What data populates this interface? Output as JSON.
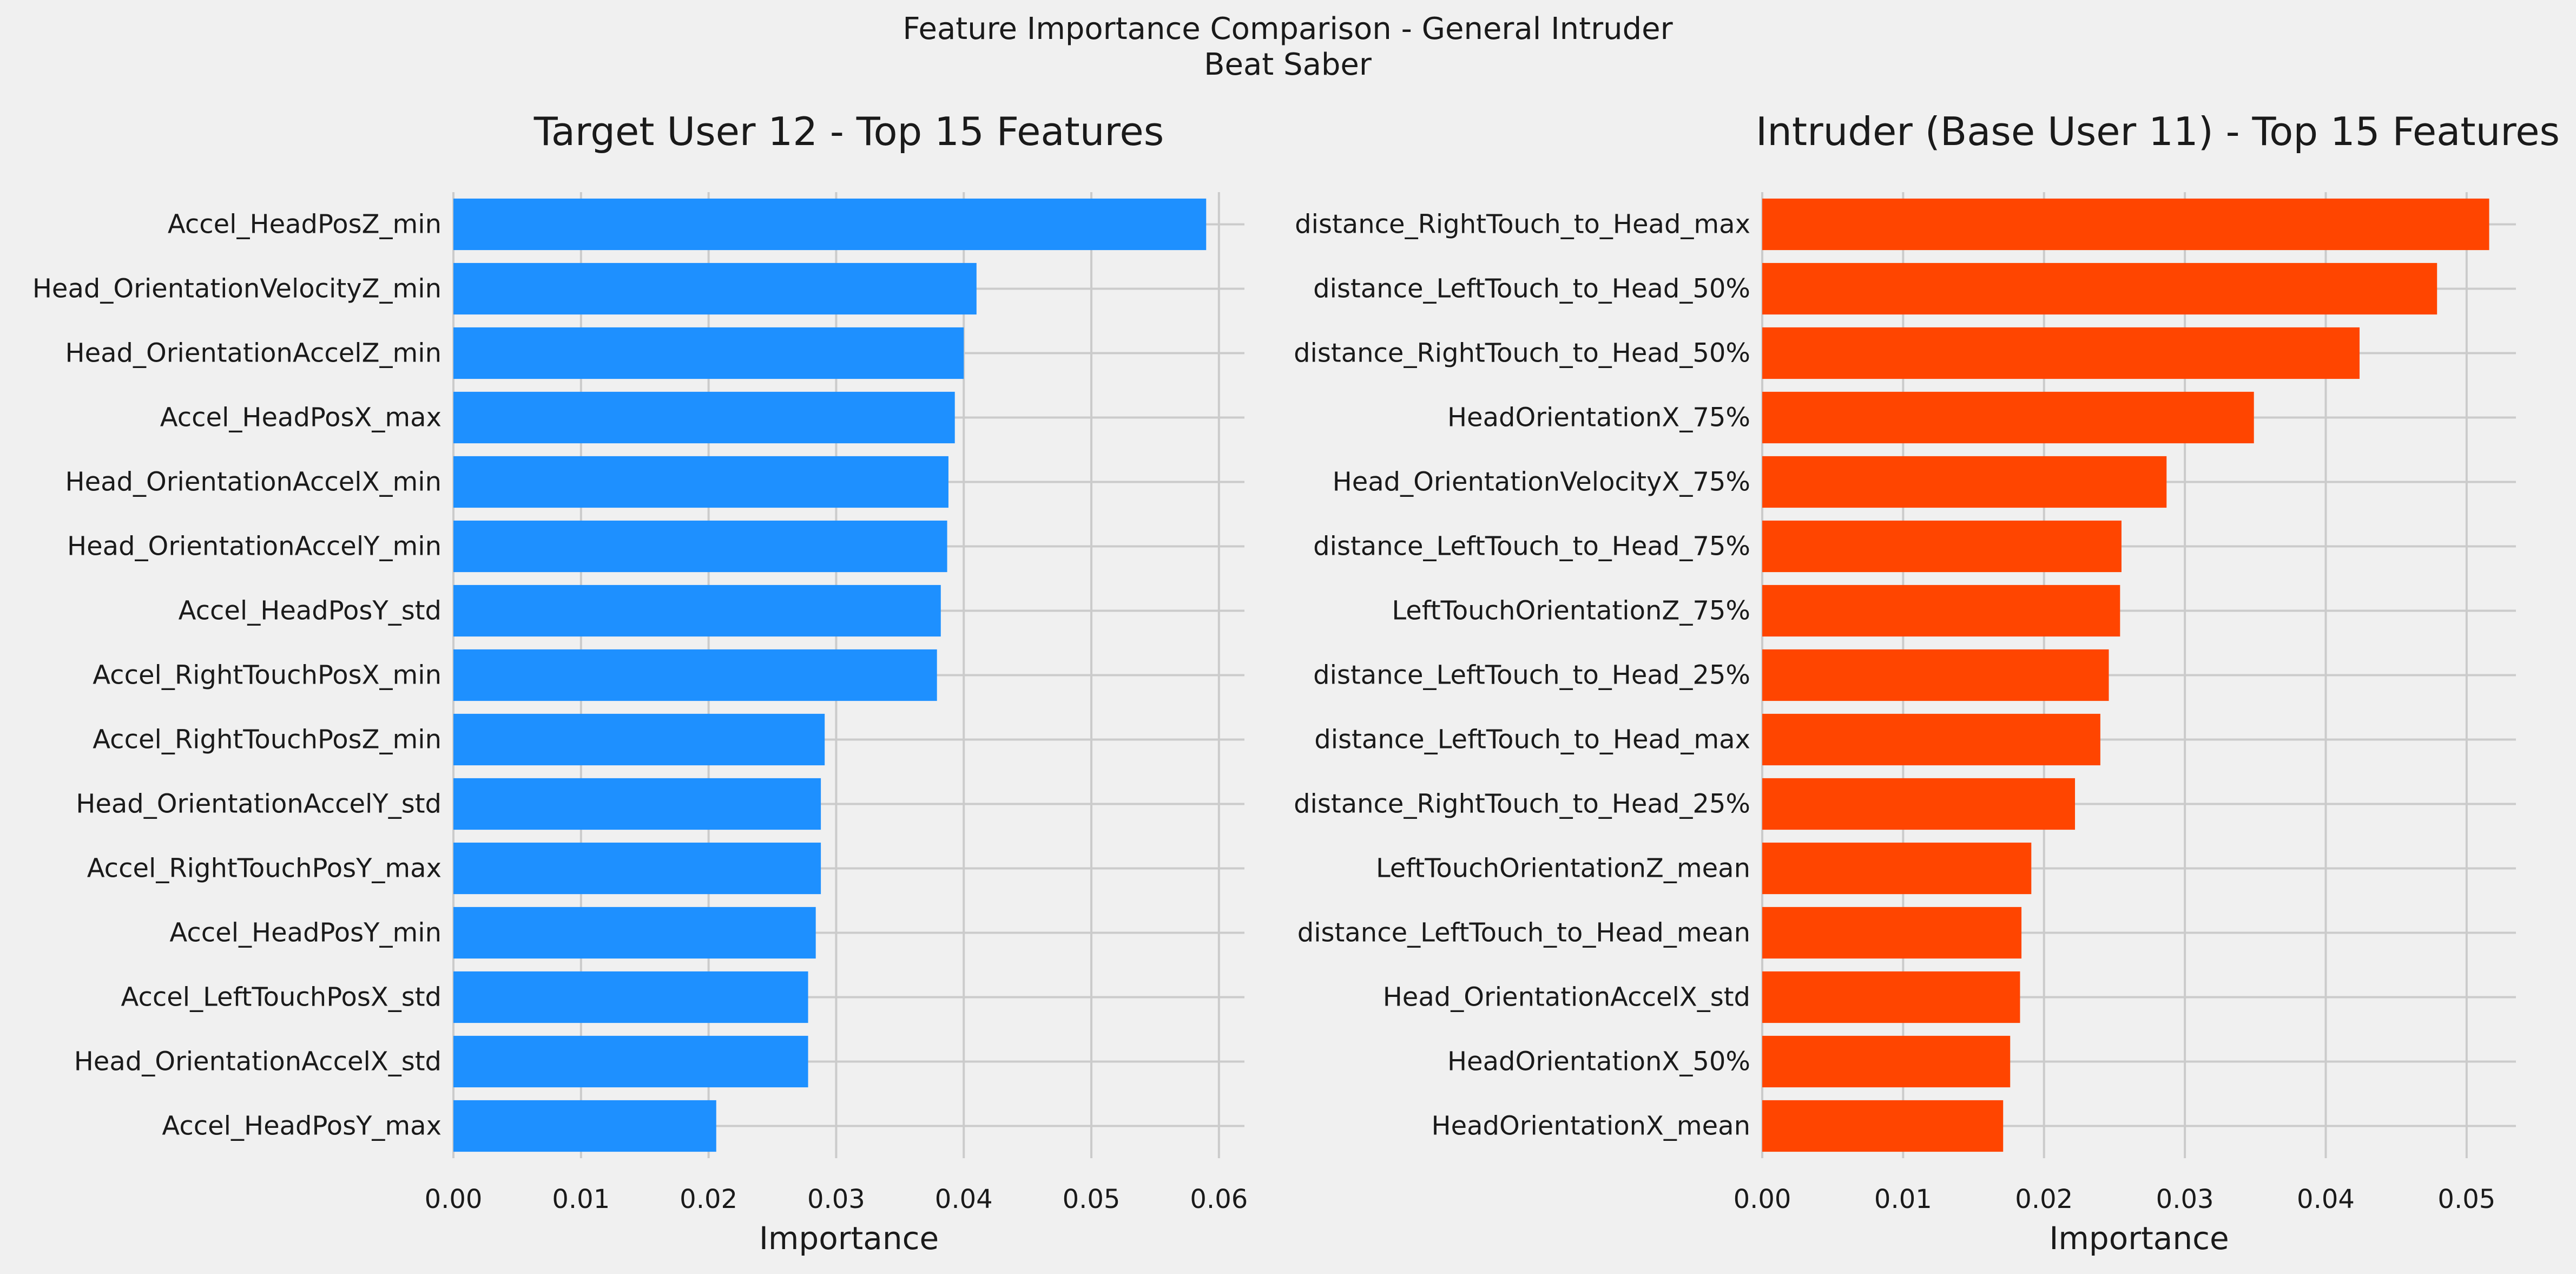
{
  "figure": {
    "suptitle_line1": "Feature Importance Comparison - General Intruder",
    "suptitle_line2": "Beat Saber",
    "background": "#f0f0f0",
    "grid_color": "#cbcbcb"
  },
  "chart_data": [
    {
      "type": "bar",
      "orientation": "horizontal",
      "title": "Target User 12 - Top 15 Features",
      "xlabel": "Importance",
      "ylabel": "",
      "xlim": [
        0,
        0.062
      ],
      "xticks": [
        0.0,
        0.01,
        0.02,
        0.03,
        0.04,
        0.05,
        0.06
      ],
      "xtick_labels": [
        "0.00",
        "0.01",
        "0.02",
        "0.03",
        "0.04",
        "0.05",
        "0.06"
      ],
      "grid": true,
      "color": "#1e90ff",
      "categories": [
        "Accel_HeadPosZ_min",
        "Head_OrientationVelocityZ_min",
        "Head_OrientationAccelZ_min",
        "Accel_HeadPosX_max",
        "Head_OrientationAccelX_min",
        "Head_OrientationAccelY_min",
        "Accel_HeadPosY_std",
        "Accel_RightTouchPosX_min",
        "Accel_RightTouchPosZ_min",
        "Head_OrientationAccelY_std",
        "Accel_RightTouchPosY_max",
        "Accel_HeadPosY_min",
        "Accel_LeftTouchPosX_std",
        "Head_OrientationAccelX_std",
        "Accel_HeadPosY_max"
      ],
      "values": [
        0.059,
        0.041,
        0.04,
        0.0393,
        0.0388,
        0.0387,
        0.0382,
        0.0379,
        0.0291,
        0.0288,
        0.0288,
        0.0284,
        0.0278,
        0.0278,
        0.0206
      ]
    },
    {
      "type": "bar",
      "orientation": "horizontal",
      "title": "Intruder (Base User 11) - Top 15 Features",
      "xlabel": "Importance",
      "ylabel": "",
      "xlim": [
        0,
        0.0535
      ],
      "xticks": [
        0.0,
        0.01,
        0.02,
        0.03,
        0.04,
        0.05
      ],
      "xtick_labels": [
        "0.00",
        "0.01",
        "0.02",
        "0.03",
        "0.04",
        "0.05"
      ],
      "grid": true,
      "color": "#ff4500",
      "categories": [
        "distance_RightTouch_to_Head_max",
        "distance_LeftTouch_to_Head_50%",
        "distance_RightTouch_to_Head_50%",
        "HeadOrientationX_75%",
        "Head_OrientationVelocityX_75%",
        "distance_LeftTouch_to_Head_75%",
        "LeftTouchOrientationZ_75%",
        "distance_LeftTouch_to_Head_25%",
        "distance_LeftTouch_to_Head_max",
        "distance_RightTouch_to_Head_25%",
        "LeftTouchOrientationZ_mean",
        "distance_LeftTouch_to_Head_mean",
        "Head_OrientationAccelX_std",
        "HeadOrientationX_50%",
        "HeadOrientationX_mean"
      ],
      "values": [
        0.0516,
        0.0479,
        0.0424,
        0.0349,
        0.0287,
        0.0255,
        0.0254,
        0.0246,
        0.024,
        0.0222,
        0.0191,
        0.0184,
        0.0183,
        0.0176,
        0.0171
      ]
    }
  ]
}
